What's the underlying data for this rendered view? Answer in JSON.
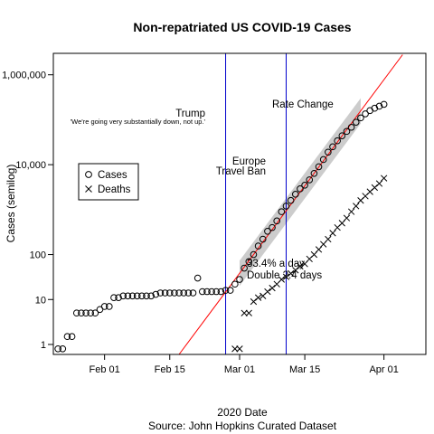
{
  "chart_data": {
    "type": "scatter",
    "title": "Non-repatriated US COVID-19 Cases",
    "xlabel": "2020 Date",
    "source": "Source: John Hopkins Curated Dataset",
    "ylabel": "Cases (semilog)",
    "yscale": "log",
    "xlim": [
      "2020-01-21",
      "2020-04-10"
    ],
    "ylim": [
      0.6,
      3000000
    ],
    "xticks": [
      {
        "date": "2020-02-01",
        "label": "Feb 01"
      },
      {
        "date": "2020-02-15",
        "label": "Feb 15"
      },
      {
        "date": "2020-03-01",
        "label": "Mar 01"
      },
      {
        "date": "2020-03-15",
        "label": "Mar 15"
      },
      {
        "date": "2020-04-01",
        "label": "Apr 01"
      }
    ],
    "yticks": [
      {
        "value": 1,
        "label": "1"
      },
      {
        "value": 10,
        "label": "10"
      },
      {
        "value": 100,
        "label": "100"
      },
      {
        "value": 10000,
        "label": "10,000"
      },
      {
        "value": 1000000,
        "label": "1,000,000"
      }
    ],
    "legend": {
      "position": "left",
      "entries": [
        {
          "label": "Cases",
          "marker": "circle"
        },
        {
          "label": "Deaths",
          "marker": "cross"
        }
      ]
    },
    "series": [
      {
        "name": "Cases",
        "marker": "circle",
        "points": [
          [
            "2020-01-22",
            0.8
          ],
          [
            "2020-01-23",
            0.8
          ],
          [
            "2020-01-24",
            1.5
          ],
          [
            "2020-01-25",
            1.5
          ],
          [
            "2020-01-26",
            5
          ],
          [
            "2020-01-27",
            5
          ],
          [
            "2020-01-28",
            5
          ],
          [
            "2020-01-29",
            5
          ],
          [
            "2020-01-30",
            5
          ],
          [
            "2020-01-31",
            6
          ],
          [
            "2020-02-01",
            7
          ],
          [
            "2020-02-02",
            7
          ],
          [
            "2020-02-03",
            11
          ],
          [
            "2020-02-04",
            11
          ],
          [
            "2020-02-05",
            12
          ],
          [
            "2020-02-06",
            12
          ],
          [
            "2020-02-07",
            12
          ],
          [
            "2020-02-08",
            12
          ],
          [
            "2020-02-09",
            12
          ],
          [
            "2020-02-10",
            12
          ],
          [
            "2020-02-11",
            12
          ],
          [
            "2020-02-12",
            13
          ],
          [
            "2020-02-13",
            14
          ],
          [
            "2020-02-14",
            14
          ],
          [
            "2020-02-15",
            14
          ],
          [
            "2020-02-16",
            14
          ],
          [
            "2020-02-17",
            14
          ],
          [
            "2020-02-18",
            14
          ],
          [
            "2020-02-19",
            14
          ],
          [
            "2020-02-20",
            14
          ],
          [
            "2020-02-21",
            30
          ],
          [
            "2020-02-22",
            15
          ],
          [
            "2020-02-23",
            15
          ],
          [
            "2020-02-24",
            15
          ],
          [
            "2020-02-25",
            15
          ],
          [
            "2020-02-26",
            15
          ],
          [
            "2020-02-27",
            16
          ],
          [
            "2020-02-28",
            16
          ],
          [
            "2020-02-29",
            22
          ],
          [
            "2020-03-01",
            28
          ],
          [
            "2020-03-02",
            50
          ],
          [
            "2020-03-03",
            70
          ],
          [
            "2020-03-04",
            100
          ],
          [
            "2020-03-05",
            155
          ],
          [
            "2020-03-06",
            220
          ],
          [
            "2020-03-07",
            330
          ],
          [
            "2020-03-08",
            400
          ],
          [
            "2020-03-09",
            560
          ],
          [
            "2020-03-10",
            900
          ],
          [
            "2020-03-11",
            1200
          ],
          [
            "2020-03-12",
            1600
          ],
          [
            "2020-03-13",
            2200
          ],
          [
            "2020-03-14",
            2900
          ],
          [
            "2020-03-15",
            3500
          ],
          [
            "2020-03-16",
            4600
          ],
          [
            "2020-03-17",
            6400
          ],
          [
            "2020-03-18",
            9000
          ],
          [
            "2020-03-19",
            13000
          ],
          [
            "2020-03-20",
            19000
          ],
          [
            "2020-03-21",
            25000
          ],
          [
            "2020-03-22",
            34000
          ],
          [
            "2020-03-23",
            44000
          ],
          [
            "2020-03-24",
            55000
          ],
          [
            "2020-03-25",
            68000
          ],
          [
            "2020-03-26",
            88000
          ],
          [
            "2020-03-27",
            110000
          ],
          [
            "2020-03-28",
            135000
          ],
          [
            "2020-03-29",
            160000
          ],
          [
            "2020-03-30",
            180000
          ],
          [
            "2020-03-31",
            200000
          ],
          [
            "2020-04-01",
            220000
          ]
        ]
      },
      {
        "name": "Deaths",
        "marker": "cross",
        "points": [
          [
            "2020-02-29",
            0.8
          ],
          [
            "2020-03-01",
            0.8
          ],
          [
            "2020-03-02",
            5
          ],
          [
            "2020-03-03",
            5
          ],
          [
            "2020-03-04",
            9
          ],
          [
            "2020-03-05",
            11
          ],
          [
            "2020-03-06",
            12
          ],
          [
            "2020-03-07",
            15
          ],
          [
            "2020-03-08",
            18
          ],
          [
            "2020-03-09",
            22
          ],
          [
            "2020-03-10",
            28
          ],
          [
            "2020-03-11",
            32
          ],
          [
            "2020-03-12",
            38
          ],
          [
            "2020-03-13",
            45
          ],
          [
            "2020-03-14",
            55
          ],
          [
            "2020-03-15",
            62
          ],
          [
            "2020-03-16",
            80
          ],
          [
            "2020-03-17",
            100
          ],
          [
            "2020-03-18",
            130
          ],
          [
            "2020-03-19",
            170
          ],
          [
            "2020-03-20",
            220
          ],
          [
            "2020-03-21",
            300
          ],
          [
            "2020-03-22",
            400
          ],
          [
            "2020-03-23",
            500
          ],
          [
            "2020-03-24",
            650
          ],
          [
            "2020-03-25",
            900
          ],
          [
            "2020-03-26",
            1200
          ],
          [
            "2020-03-27",
            1600
          ],
          [
            "2020-03-28",
            2000
          ],
          [
            "2020-03-29",
            2500
          ],
          [
            "2020-03-30",
            3100
          ],
          [
            "2020-03-31",
            3800
          ],
          [
            "2020-04-01",
            5000
          ]
        ]
      }
    ],
    "fit_line": {
      "color": "#ff0000",
      "points": [
        [
          "2020-02-17",
          0.6
        ],
        [
          "2020-04-05",
          2800000
        ]
      ]
    },
    "confidence_band": {
      "color": "#cccccc",
      "start": "2020-03-01",
      "end": "2020-03-27"
    },
    "events": [
      {
        "date": "2020-02-27",
        "label": "Trump",
        "quote": "'We're going very substantially down, not up.'",
        "color": "#0000cc"
      },
      {
        "date": "2020-03-11",
        "label_line1": "Europe",
        "label_line2": "Travel Ban",
        "color": "#0000cc"
      }
    ],
    "annotations": {
      "rate_change": "Rate Change",
      "growth": "33.4% a day",
      "doubling": "Double 2.4 days"
    }
  }
}
